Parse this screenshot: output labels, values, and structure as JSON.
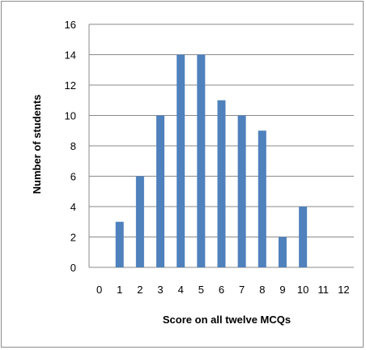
{
  "chart_data": {
    "type": "bar",
    "title": "",
    "xlabel": "Score on all twelve MCQs",
    "ylabel": "Number of students",
    "categories": [
      "0",
      "1",
      "2",
      "3",
      "4",
      "5",
      "6",
      "7",
      "8",
      "9",
      "10",
      "11",
      "12"
    ],
    "values": [
      0,
      3,
      6,
      10,
      14,
      14,
      11,
      10,
      9,
      2,
      4,
      0,
      0
    ],
    "ylim": [
      0,
      16
    ],
    "yticks": [
      0,
      2,
      4,
      6,
      8,
      10,
      12,
      14,
      16
    ],
    "grid": "horizontal",
    "legend": "none",
    "colors": {
      "bar": "#4f81bd",
      "grid": "#8a8a8a",
      "axis": "#8a8a8a"
    }
  }
}
